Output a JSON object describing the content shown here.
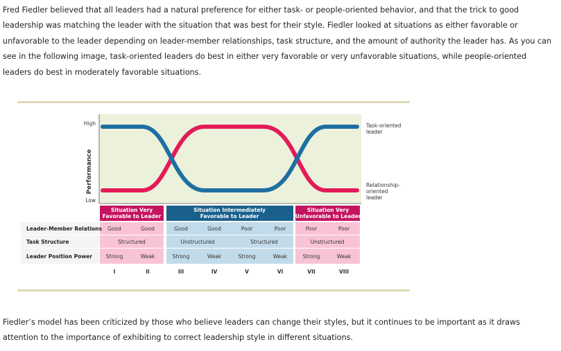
{
  "intro_text": "Fred Fiedler believed that all leaders had a natural preference for either task- or people-oriented behavior, and that the trick to good leadership was matching the leader with the situation that was best for their style. Fiedler looked at situations as either favorable or unfavorable to the leader depending on leader-member relationships, task structure, and the amount of authority the leader has. As you can see in the following image, task-oriented leaders do best in either very favorable or very unfavorable situations, while people-oriented leaders do best in moderately favorable situations.",
  "outro_text": "Fiedler’s model has been criticized by those who believe leaders can change their styles, but it continues to be important as it draws attention to the importance of exhibiting to correct leadership style in different situations.",
  "diagram": {
    "y_axis_label": "Performance",
    "y_high": "High",
    "y_low": "Low",
    "legend_task": [
      "Task-oriented",
      "leader"
    ],
    "legend_relationship": [
      "Relationship-",
      "oriented",
      "leader"
    ],
    "colors": {
      "plot_bg": "#ecf1db",
      "task": "#1e6fa2",
      "relationship": "#e31b58",
      "header_magenta": "#c4145f",
      "header_blue": "#19608c",
      "cell_pink": "#f9c3d6",
      "cell_blue": "#c2dbea"
    },
    "groups": [
      {
        "line1": "Situation Very",
        "line2": "Favorable to Leader"
      },
      {
        "line1": "Situation Intermediately",
        "line2": "Favorable to Leader"
      },
      {
        "line1": "Situation Very",
        "line2": "Unfavorable to Leader"
      }
    ],
    "rows": [
      {
        "label": "Leader-Member Relations",
        "cells": [
          "Good",
          "Good",
          "Good",
          "Good",
          "Poor",
          "Poor",
          "Poor",
          "Poor"
        ]
      },
      {
        "label": "Task Structure",
        "cells": [
          "Structured",
          "Unstructured",
          "Structured",
          "Unstructured"
        ]
      },
      {
        "label": "Leader Position Power",
        "cells": [
          "Strong",
          "Weak",
          "Strong",
          "Weak",
          "Strong",
          "Weak",
          "Strong",
          "Weak"
        ]
      }
    ],
    "numerals": [
      "I",
      "II",
      "III",
      "IV",
      "V",
      "VI",
      "VII",
      "VIII"
    ]
  }
}
